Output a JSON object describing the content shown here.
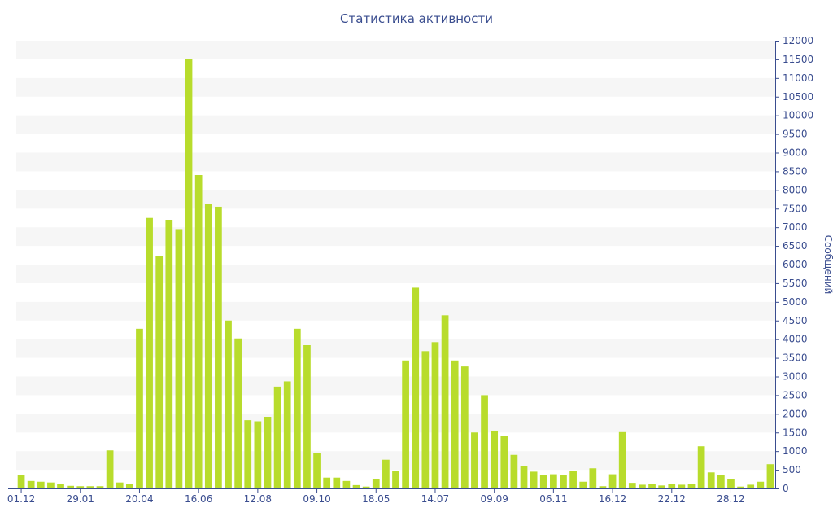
{
  "chart_data": {
    "type": "bar",
    "title": "Статистика активности",
    "ylabel": "Сообщений",
    "xlabel": "",
    "ylim": [
      0,
      12000
    ],
    "y_ticks": [
      0,
      500,
      1000,
      1500,
      2000,
      2500,
      3000,
      3500,
      4000,
      4500,
      5000,
      5500,
      6000,
      6500,
      7000,
      7500,
      8000,
      8500,
      9000,
      9500,
      10000,
      10500,
      11000,
      11500,
      12000
    ],
    "x_tick_labels": [
      {
        "label": "01.12",
        "index": 0
      },
      {
        "label": "29.01",
        "index": 6
      },
      {
        "label": "20.04",
        "index": 12
      },
      {
        "label": "16.06",
        "index": 18
      },
      {
        "label": "12.08",
        "index": 24
      },
      {
        "label": "09.10",
        "index": 30
      },
      {
        "label": "18.05",
        "index": 36
      },
      {
        "label": "14.07",
        "index": 42
      },
      {
        "label": "09.09",
        "index": 48
      },
      {
        "label": "06.11",
        "index": 54
      },
      {
        "label": "16.12",
        "index": 60
      },
      {
        "label": "22.12",
        "index": 66
      },
      {
        "label": "28.12",
        "index": 72
      }
    ],
    "values": [
      350,
      200,
      180,
      160,
      130,
      70,
      60,
      60,
      60,
      1020,
      160,
      130,
      4280,
      7250,
      6220,
      7200,
      6950,
      11520,
      8400,
      7620,
      7550,
      4500,
      4020,
      1830,
      1800,
      1920,
      2730,
      2870,
      4280,
      3840,
      960,
      290,
      290,
      200,
      90,
      50,
      250,
      770,
      480,
      3430,
      5380,
      3680,
      3920,
      4640,
      3430,
      3270,
      1500,
      2500,
      1550,
      1410,
      900,
      600,
      450,
      350,
      380,
      350,
      460,
      180,
      540,
      60,
      380,
      1510,
      150,
      100,
      130,
      80,
      130,
      100,
      110,
      1130,
      430,
      370,
      250,
      50,
      100,
      180,
      650
    ],
    "grid": true,
    "y_axis_position": "right",
    "bar_color": "#b8dc2c",
    "grid_band_color": "#f6f6f6",
    "axis_color": "#3a4d8f"
  }
}
